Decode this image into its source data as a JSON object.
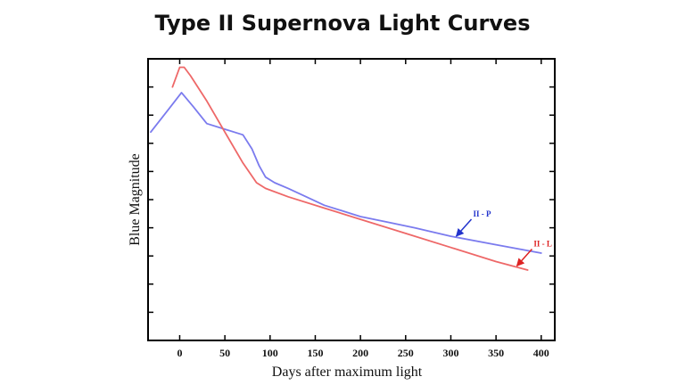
{
  "chart_data": {
    "type": "line",
    "title": "Type II Supernova Light Curves",
    "xlabel": "Days after maximum light",
    "ylabel": "Blue Magnitude",
    "xlim": [
      -35,
      415
    ],
    "x_ticks": [
      0,
      50,
      100,
      150,
      200,
      250,
      300,
      350,
      400
    ],
    "y_ticks_labeled": false,
    "grid": false,
    "series": [
      {
        "name": "II - P",
        "color": "#7b7bee",
        "points": [
          [
            -32,
            0.74
          ],
          [
            -10,
            0.83
          ],
          [
            2,
            0.88
          ],
          [
            15,
            0.83
          ],
          [
            30,
            0.77
          ],
          [
            50,
            0.75
          ],
          [
            70,
            0.73
          ],
          [
            80,
            0.68
          ],
          [
            88,
            0.62
          ],
          [
            95,
            0.58
          ],
          [
            105,
            0.56
          ],
          [
            120,
            0.54
          ],
          [
            140,
            0.51
          ],
          [
            160,
            0.48
          ],
          [
            180,
            0.46
          ],
          [
            200,
            0.44
          ],
          [
            230,
            0.42
          ],
          [
            260,
            0.4
          ],
          [
            300,
            0.37
          ],
          [
            350,
            0.34
          ],
          [
            400,
            0.31
          ]
        ]
      },
      {
        "name": "II - L",
        "color": "#ee6868",
        "points": [
          [
            -8,
            0.9
          ],
          [
            0,
            0.97
          ],
          [
            5,
            0.97
          ],
          [
            12,
            0.94
          ],
          [
            30,
            0.85
          ],
          [
            50,
            0.74
          ],
          [
            70,
            0.63
          ],
          [
            85,
            0.56
          ],
          [
            95,
            0.54
          ],
          [
            120,
            0.51
          ],
          [
            160,
            0.47
          ],
          [
            200,
            0.43
          ],
          [
            250,
            0.38
          ],
          [
            300,
            0.33
          ],
          [
            350,
            0.28
          ],
          [
            385,
            0.25
          ]
        ]
      }
    ],
    "annotations": [
      {
        "text": "II - P",
        "arrow_to_x": 305
      },
      {
        "text": "II - L",
        "arrow_to_x": 372
      }
    ]
  }
}
